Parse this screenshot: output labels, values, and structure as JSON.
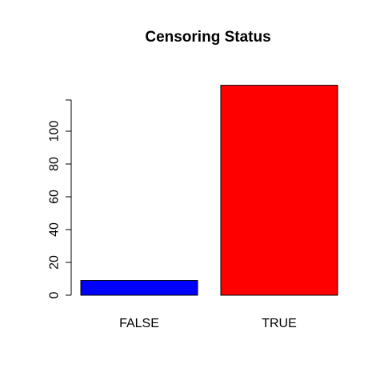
{
  "chart_data": {
    "type": "bar",
    "title": "Censoring Status",
    "xlabel": "",
    "ylabel": "",
    "categories": [
      "FALSE",
      "TRUE"
    ],
    "values": [
      9,
      128
    ],
    "colors": [
      "#0000FF",
      "#FF0000"
    ],
    "yticks": [
      0,
      20,
      40,
      60,
      80,
      100
    ],
    "ylim": [
      0,
      128
    ],
    "grid": false,
    "legend": "none"
  }
}
